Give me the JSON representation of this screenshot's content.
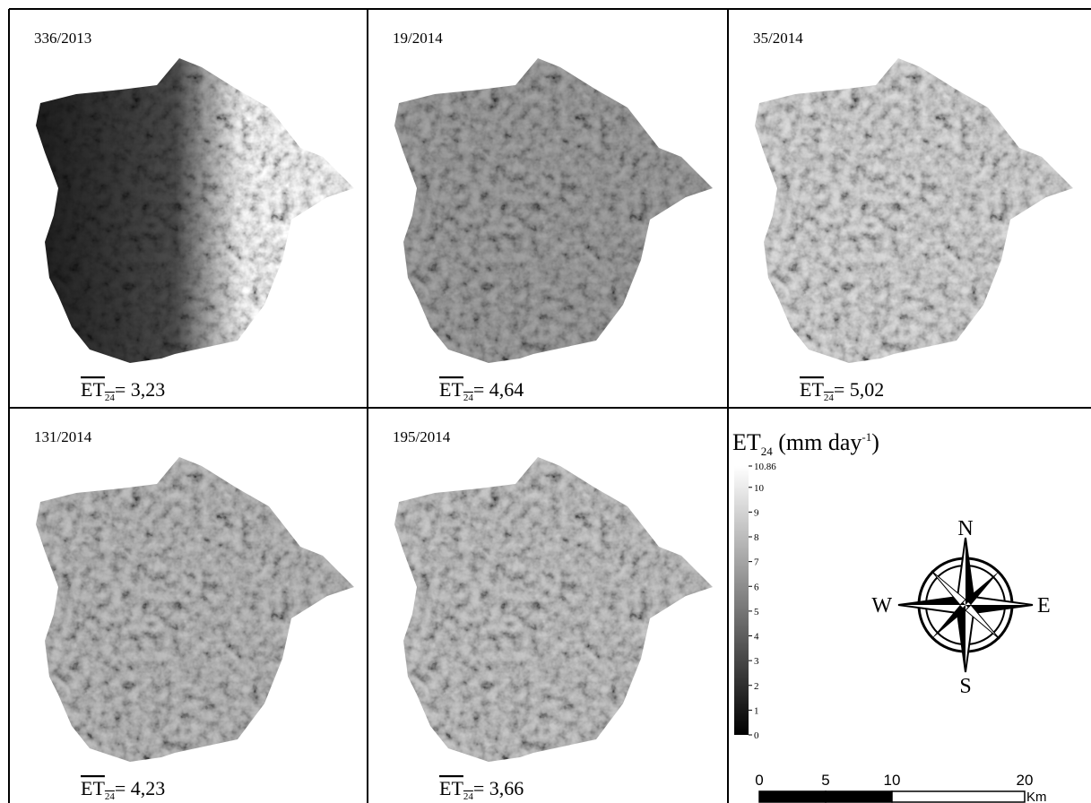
{
  "panels": [
    {
      "label": "336/2013",
      "symbol": "ET",
      "subscript": "24",
      "mean": "= 3,23"
    },
    {
      "label": "19/2014",
      "symbol": "ET",
      "subscript": "24",
      "mean": "= 4,64"
    },
    {
      "label": "35/2014",
      "symbol": "ET",
      "subscript": "24",
      "mean": "= 5,02"
    },
    {
      "label": "131/2014",
      "symbol": "ET",
      "subscript": "24",
      "mean": "= 4,23"
    },
    {
      "label": "195/2014",
      "symbol": "ET",
      "subscript": "24",
      "mean": "= 3,66"
    }
  ],
  "legend": {
    "symbol": "ET",
    "subscript": "24",
    "unit": " (mm day",
    "exponent": "-1",
    "close": ")",
    "ticks": [
      10.86,
      10,
      9,
      8,
      7,
      6,
      5,
      4,
      3,
      2,
      1,
      0
    ]
  },
  "compass": {
    "north": "N",
    "south": "S",
    "west": "W",
    "east": "E"
  },
  "scale_bar": {
    "ticks": [
      0,
      5,
      10,
      20
    ],
    "unit": "Km"
  }
}
